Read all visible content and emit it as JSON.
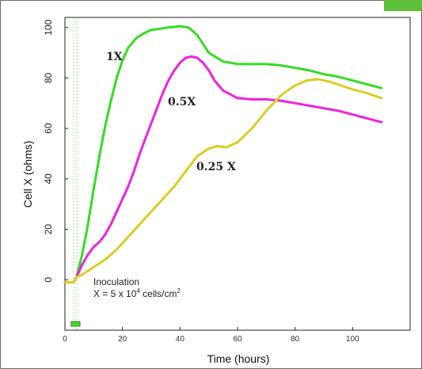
{
  "chart_data": {
    "type": "line",
    "title": "",
    "xlabel": "Time (hours)",
    "ylabel": "Cell X (ohms)",
    "xlim": [
      0,
      120
    ],
    "ylim": [
      -20,
      104
    ],
    "xticks": [
      0,
      20,
      40,
      60,
      80,
      100
    ],
    "yticks": [
      0,
      20,
      40,
      60,
      80,
      100
    ],
    "grid": false,
    "series": [
      {
        "name": "1X",
        "color": "#33dd22",
        "x": [
          0,
          3,
          4,
          6,
          8,
          10,
          12,
          14,
          16,
          18,
          20,
          22,
          25,
          28,
          30,
          33,
          36,
          40,
          43,
          46,
          50,
          55,
          60,
          65,
          70,
          75,
          80,
          85,
          90,
          95,
          100,
          105,
          110
        ],
        "y": [
          -1,
          -1,
          1,
          10,
          22,
          36,
          49,
          61,
          71,
          80,
          87,
          92,
          96,
          98,
          99,
          99.5,
          100,
          100.5,
          100,
          97,
          90,
          86.5,
          85.5,
          85.5,
          85.5,
          85,
          84,
          83,
          81.5,
          80.5,
          79,
          77.5,
          76
        ]
      },
      {
        "name": "0.5X",
        "color": "#ee22dd",
        "x": [
          0,
          3,
          4,
          6,
          8,
          10,
          12,
          14,
          16,
          18,
          20,
          22,
          24,
          26,
          28,
          30,
          32,
          34,
          36,
          38,
          40,
          42,
          44,
          46,
          48,
          50,
          52,
          55,
          60,
          65,
          70,
          75,
          80,
          85,
          90,
          95,
          100,
          105,
          110
        ],
        "y": [
          -1,
          -1,
          1,
          6,
          10,
          13,
          15,
          18,
          22,
          27,
          32,
          37,
          43,
          50,
          56,
          62,
          68,
          74,
          79,
          83,
          86,
          88,
          88.5,
          88,
          86,
          83,
          79,
          75,
          72,
          71.5,
          71.5,
          71,
          70,
          69,
          68,
          67,
          65.5,
          64,
          62.5
        ]
      },
      {
        "name": "0.25 X",
        "color": "#ddcc22",
        "x": [
          0,
          3,
          4,
          6,
          10,
          14,
          18,
          22,
          26,
          30,
          34,
          38,
          42,
          46,
          50,
          53,
          56,
          60,
          65,
          70,
          75,
          78,
          80,
          84,
          88,
          92,
          96,
          100,
          105,
          110
        ],
        "y": [
          -1,
          -1,
          1,
          2,
          5,
          8,
          12,
          17,
          22,
          27,
          32,
          37,
          43,
          49,
          52,
          53,
          52.5,
          54.5,
          60,
          67,
          73,
          75.5,
          77,
          79,
          79.5,
          78.5,
          77,
          75.5,
          74,
          72
        ]
      }
    ],
    "annotations": [
      {
        "text": "Inoculation"
      },
      {
        "text": "X = 5 x 10",
        "superscript": "4",
        "suffix": " cells/cm",
        "suffix_superscript": "2"
      }
    ]
  }
}
